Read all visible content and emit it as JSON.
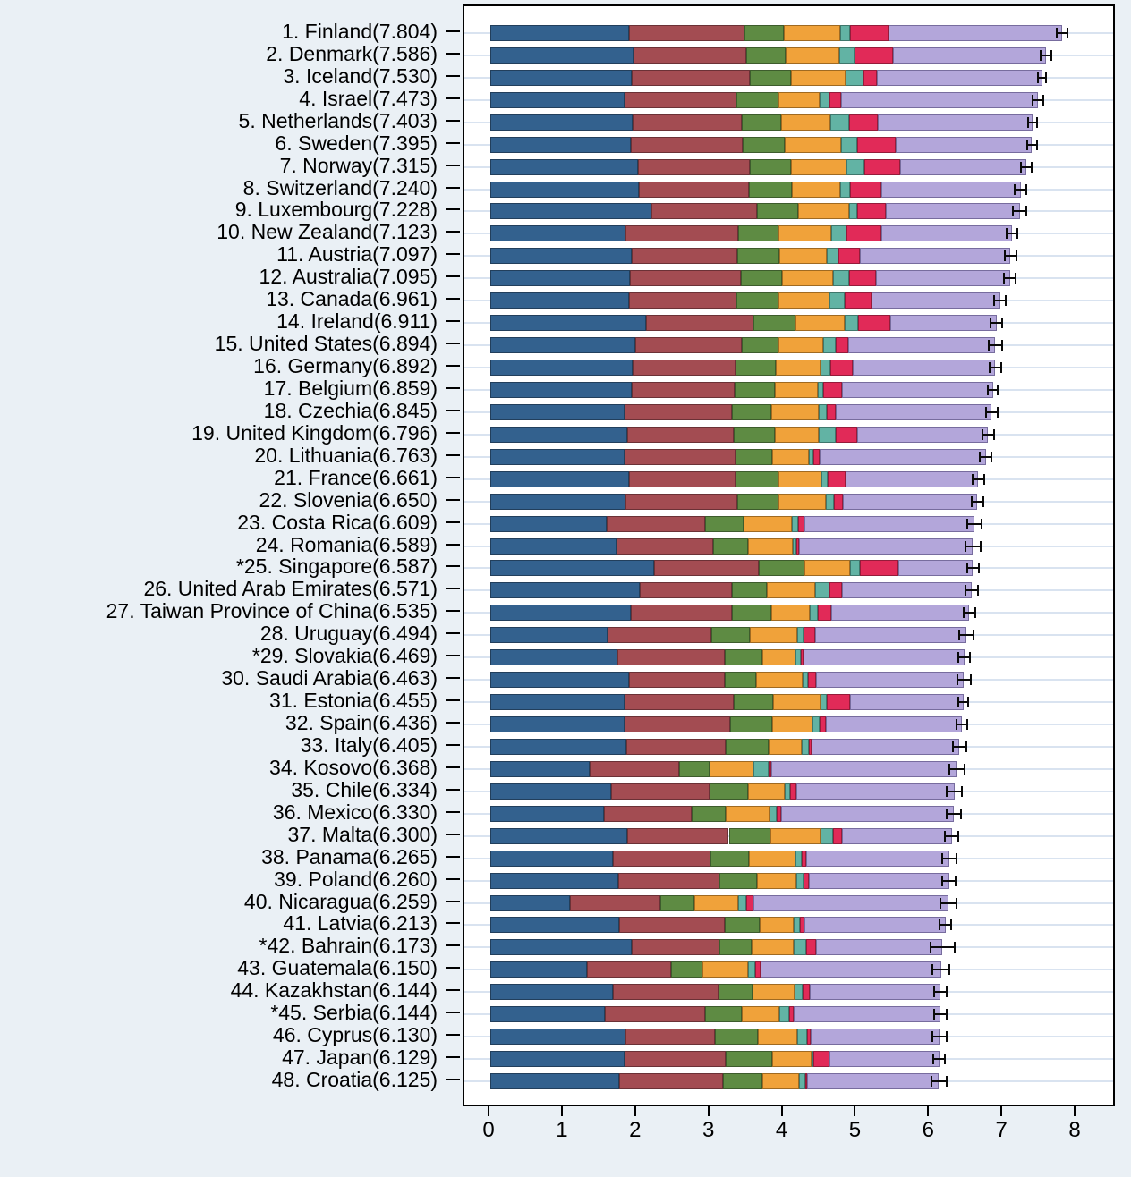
{
  "figure": {
    "background_color": "#eaf0f5",
    "plot_background_color": "#ffffff",
    "gridline_color": "#d9e3f0",
    "frame_color": "#000000",
    "whisker_color": "#0a0a0a"
  },
  "chart_data": {
    "type": "bar",
    "orientation": "horizontal",
    "stacked": true,
    "title": "",
    "xlabel": "",
    "ylabel": "",
    "xlim": [
      0,
      8
    ],
    "xticks": [
      0,
      1,
      2,
      3,
      4,
      5,
      6,
      7,
      8
    ],
    "grid": "horizontal-per-row",
    "legend": "none-visible",
    "error_bars": "95%-confidence-interval-whiskers-at-bar-end",
    "series": [
      {
        "key": "gdp-per-capita",
        "fill": "#33618e",
        "border": "#223f5c"
      },
      {
        "key": "social-support",
        "fill": "#a34c52",
        "border": "#6b3136"
      },
      {
        "key": "healthy-life-expectancy",
        "fill": "#5e8b43",
        "border": "#3d5c2c"
      },
      {
        "key": "freedom-to-make-life-choices",
        "fill": "#f0a23a",
        "border": "#a06a21"
      },
      {
        "key": "generosity",
        "fill": "#62b3a4",
        "border": "#3f776c"
      },
      {
        "key": "perceptions-of-corruption",
        "fill": "#e12a58",
        "border": "#951b3a"
      },
      {
        "key": "dystopia-plus-residual",
        "fill": "#b3a6da",
        "border": "#776c9e"
      }
    ],
    "countries": [
      {
        "label": "1. Finland(7.804)",
        "name": "Finland",
        "score": 7.804,
        "ci": 0.07,
        "values": [
          1.888,
          1.585,
          0.535,
          0.772,
          0.126,
          0.535,
          2.363
        ]
      },
      {
        "label": "2. Denmark(7.586)",
        "name": "Denmark",
        "score": 7.586,
        "ci": 0.07,
        "values": [
          1.949,
          1.548,
          0.537,
          0.734,
          0.208,
          0.525,
          2.084
        ]
      },
      {
        "label": "3. Iceland(7.530)",
        "name": "Iceland",
        "score": 7.53,
        "ci": 0.06,
        "values": [
          1.926,
          1.62,
          0.559,
          0.738,
          0.25,
          0.187,
          2.25
        ]
      },
      {
        "label": "4. Israel(7.473)",
        "name": "Israel",
        "score": 7.473,
        "ci": 0.07,
        "values": [
          1.833,
          1.521,
          0.577,
          0.569,
          0.124,
          0.158,
          2.691
        ]
      },
      {
        "label": "5. Netherlands(7.403)",
        "name": "Netherlands",
        "score": 7.403,
        "ci": 0.06,
        "values": [
          1.942,
          1.488,
          0.545,
          0.672,
          0.251,
          0.394,
          2.11
        ]
      },
      {
        "label": "6. Sweden(7.395)",
        "name": "Sweden",
        "score": 7.395,
        "ci": 0.07,
        "values": [
          1.921,
          1.528,
          0.57,
          0.772,
          0.213,
          0.524,
          1.867
        ]
      },
      {
        "label": "7. Norway(7.315)",
        "name": "Norway",
        "score": 7.315,
        "ci": 0.07,
        "values": [
          2.01,
          1.527,
          0.565,
          0.755,
          0.249,
          0.483,
          1.727
        ]
      },
      {
        "label": "8. Switzerland(7.240)",
        "name": "Switzerland",
        "score": 7.24,
        "ci": 0.08,
        "values": [
          2.025,
          1.5,
          0.585,
          0.668,
          0.13,
          0.424,
          1.908
        ]
      },
      {
        "label": "9. Luxembourg(7.228)",
        "name": "Luxembourg",
        "score": 7.228,
        "ci": 0.09,
        "values": [
          2.2,
          1.437,
          0.565,
          0.69,
          0.119,
          0.388,
          1.829
        ]
      },
      {
        "label": "10. New Zealand(7.123)",
        "name": "New Zealand",
        "score": 7.123,
        "ci": 0.07,
        "values": [
          1.842,
          1.537,
          0.557,
          0.712,
          0.217,
          0.472,
          1.786
        ]
      },
      {
        "label": "11. Austria(7.097)",
        "name": "Austria",
        "score": 7.097,
        "ci": 0.08,
        "values": [
          1.931,
          1.444,
          0.566,
          0.646,
          0.16,
          0.292,
          2.058
        ]
      },
      {
        "label": "12. Australia(7.095)",
        "name": "Australia",
        "score": 7.095,
        "ci": 0.08,
        "values": [
          1.9,
          1.517,
          0.567,
          0.698,
          0.216,
          0.364,
          1.833
        ]
      },
      {
        "label": "13. Canada(6.961)",
        "name": "Canada",
        "score": 6.961,
        "ci": 0.08,
        "values": [
          1.898,
          1.465,
          0.573,
          0.697,
          0.207,
          0.368,
          1.753
        ]
      },
      {
        "label": "14. Ireland(6.911)",
        "name": "Ireland",
        "score": 6.911,
        "ci": 0.08,
        "values": [
          2.129,
          1.466,
          0.57,
          0.668,
          0.184,
          0.442,
          1.452
        ]
      },
      {
        "label": "15. United States(6.894)",
        "name": "United States",
        "score": 6.894,
        "ci": 0.09,
        "values": [
          1.982,
          1.446,
          0.508,
          0.613,
          0.171,
          0.169,
          2.005
        ]
      },
      {
        "label": "16. Germany(6.892)",
        "name": "Germany",
        "score": 6.892,
        "ci": 0.08,
        "values": [
          1.938,
          1.412,
          0.552,
          0.61,
          0.13,
          0.299,
          1.951
        ]
      },
      {
        "label": "17. Belgium(6.859)",
        "name": "Belgium",
        "score": 6.859,
        "ci": 0.07,
        "values": [
          1.93,
          1.403,
          0.556,
          0.584,
          0.076,
          0.247,
          2.063
        ]
      },
      {
        "label": "18. Czechia(6.845)",
        "name": "Czechia",
        "score": 6.845,
        "ci": 0.08,
        "values": [
          1.833,
          1.461,
          0.537,
          0.646,
          0.113,
          0.127,
          2.128
        ]
      },
      {
        "label": "19. United Kingdom(6.796)",
        "name": "United Kingdom",
        "score": 6.796,
        "ci": 0.08,
        "values": [
          1.867,
          1.455,
          0.557,
          0.608,
          0.223,
          0.292,
          1.794
        ]
      },
      {
        "label": "20. Lithuania(6.763)",
        "name": "Lithuania",
        "score": 6.763,
        "ci": 0.08,
        "values": [
          1.829,
          1.515,
          0.501,
          0.502,
          0.059,
          0.094,
          2.263
        ]
      },
      {
        "label": "21. France(6.661)",
        "name": "France",
        "score": 6.661,
        "ci": 0.08,
        "values": [
          1.896,
          1.447,
          0.584,
          0.588,
          0.087,
          0.25,
          1.809
        ]
      },
      {
        "label": "22. Slovenia(6.650)",
        "name": "Slovenia",
        "score": 6.65,
        "ci": 0.08,
        "values": [
          1.845,
          1.53,
          0.559,
          0.651,
          0.106,
          0.12,
          1.839
        ]
      },
      {
        "label": "23. Costa Rica(6.609)",
        "name": "Costa Rica",
        "score": 6.609,
        "ci": 0.1,
        "values": [
          1.582,
          1.35,
          0.53,
          0.654,
          0.083,
          0.085,
          2.325
        ]
      },
      {
        "label": "24. Romania(6.589)",
        "name": "Romania",
        "score": 6.589,
        "ci": 0.1,
        "values": [
          1.719,
          1.324,
          0.477,
          0.609,
          0.051,
          0.03,
          2.379
        ]
      },
      {
        "label": "*25. Singapore(6.587)",
        "name": "Singapore",
        "score": 6.587,
        "ci": 0.08,
        "values": [
          2.238,
          1.424,
          0.631,
          0.617,
          0.131,
          0.533,
          1.013
        ]
      },
      {
        "label": "26. United Arab Emirates(6.571)",
        "name": "United Arab Emirates",
        "score": 6.571,
        "ci": 0.08,
        "values": [
          2.041,
          1.258,
          0.48,
          0.654,
          0.2,
          0.172,
          1.766
        ]
      },
      {
        "label": "27. Taiwan Province of China(6.535)",
        "name": "Taiwan Province of China",
        "score": 6.535,
        "ci": 0.08,
        "values": [
          1.923,
          1.38,
          0.534,
          0.529,
          0.106,
          0.178,
          1.885
        ]
      },
      {
        "label": "28. Uruguay(6.494)",
        "name": "Uruguay",
        "score": 6.494,
        "ci": 0.1,
        "values": [
          1.601,
          1.417,
          0.52,
          0.657,
          0.085,
          0.155,
          2.059
        ]
      },
      {
        "label": "*29. Slovakia(6.469)",
        "name": "Slovakia",
        "score": 6.469,
        "ci": 0.08,
        "values": [
          1.738,
          1.459,
          0.513,
          0.453,
          0.075,
          0.031,
          2.2
        ]
      },
      {
        "label": "30. Saudi Arabia(6.463)",
        "name": "Saudi Arabia",
        "score": 6.463,
        "ci": 0.09,
        "values": [
          1.891,
          1.304,
          0.436,
          0.637,
          0.068,
          0.106,
          2.021
        ]
      },
      {
        "label": "31. Estonia(6.455)",
        "name": "Estonia",
        "score": 6.455,
        "ci": 0.07,
        "values": [
          1.836,
          1.49,
          0.528,
          0.649,
          0.093,
          0.317,
          1.542
        ]
      },
      {
        "label": "32. Spain(6.436)",
        "name": "Spain",
        "score": 6.436,
        "ci": 0.07,
        "values": [
          1.826,
          1.444,
          0.582,
          0.539,
          0.098,
          0.092,
          1.855
        ]
      },
      {
        "label": "33. Italy(6.405)",
        "name": "Italy",
        "score": 6.405,
        "ci": 0.09,
        "values": [
          1.854,
          1.359,
          0.583,
          0.459,
          0.093,
          0.039,
          2.018
        ]
      },
      {
        "label": "34. Kosovo(6.368)",
        "name": "Kosovo",
        "score": 6.368,
        "ci": 0.1,
        "values": [
          1.351,
          1.23,
          0.416,
          0.594,
          0.213,
          0.033,
          2.531
        ]
      },
      {
        "label": "35. Chile(6.334)",
        "name": "Chile",
        "score": 6.334,
        "ci": 0.1,
        "values": [
          1.651,
          1.336,
          0.535,
          0.492,
          0.081,
          0.088,
          2.151
        ]
      },
      {
        "label": "36. Mexico(6.330)",
        "name": "Mexico",
        "score": 6.33,
        "ci": 0.1,
        "values": [
          1.546,
          1.202,
          0.464,
          0.603,
          0.095,
          0.064,
          2.356
        ]
      },
      {
        "label": "37. Malta(6.300)",
        "name": "Malta",
        "score": 6.3,
        "ci": 0.09,
        "values": [
          1.866,
          1.389,
          0.572,
          0.679,
          0.173,
          0.12,
          1.501
        ]
      },
      {
        "label": "38. Panama(6.265)",
        "name": "Panama",
        "score": 6.265,
        "ci": 0.1,
        "values": [
          1.674,
          1.336,
          0.519,
          0.632,
          0.089,
          0.059,
          1.956
        ]
      },
      {
        "label": "39. Poland(6.260)",
        "name": "Poland",
        "score": 6.26,
        "ci": 0.09,
        "values": [
          1.75,
          1.377,
          0.514,
          0.542,
          0.088,
          0.074,
          1.915
        ]
      },
      {
        "label": "40. Nicaragua(6.259)",
        "name": "Nicaragua",
        "score": 6.259,
        "ci": 0.11,
        "values": [
          1.083,
          1.235,
          0.472,
          0.588,
          0.119,
          0.088,
          2.674
        ]
      },
      {
        "label": "41. Latvia(6.213)",
        "name": "Latvia",
        "score": 6.213,
        "ci": 0.08,
        "values": [
          1.76,
          1.442,
          0.469,
          0.473,
          0.081,
          0.064,
          1.924
        ]
      },
      {
        "label": "*42. Bahrain(6.173)",
        "name": "Bahrain",
        "score": 6.173,
        "ci": 0.16,
        "values": [
          1.928,
          1.204,
          0.431,
          0.581,
          0.167,
          0.133,
          1.729
        ]
      },
      {
        "label": "43. Guatemala(6.150)",
        "name": "Guatemala",
        "score": 6.15,
        "ci": 0.12,
        "values": [
          1.316,
          1.149,
          0.43,
          0.625,
          0.094,
          0.074,
          2.462
        ]
      },
      {
        "label": "44. Kazakhstan(6.144)",
        "name": "Kazakhstan",
        "score": 6.144,
        "ci": 0.09,
        "values": [
          1.676,
          1.438,
          0.469,
          0.567,
          0.115,
          0.091,
          1.788
        ]
      },
      {
        "label": "*45. Serbia(6.144)",
        "name": "Serbia",
        "score": 6.144,
        "ci": 0.09,
        "values": [
          1.567,
          1.366,
          0.494,
          0.515,
          0.133,
          0.062,
          2.007
        ]
      },
      {
        "label": "46. Cyprus(6.130)",
        "name": "Cyprus",
        "score": 6.13,
        "ci": 0.1,
        "values": [
          1.845,
          1.226,
          0.582,
          0.542,
          0.131,
          0.041,
          1.763
        ]
      },
      {
        "label": "47. Japan(6.129)",
        "name": "Japan",
        "score": 6.129,
        "ci": 0.08,
        "values": [
          1.827,
          1.391,
          0.625,
          0.54,
          0.028,
          0.217,
          1.501
        ]
      },
      {
        "label": "48. Croatia(6.125)",
        "name": "Croatia",
        "score": 6.125,
        "ci": 0.1,
        "values": [
          1.757,
          1.418,
          0.541,
          0.502,
          0.082,
          0.022,
          1.803
        ]
      }
    ]
  }
}
